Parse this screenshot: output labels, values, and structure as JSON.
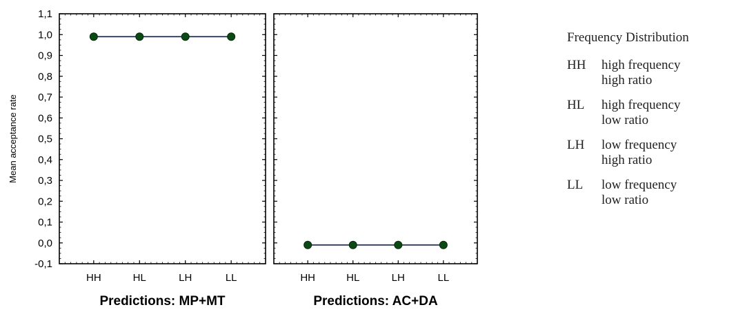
{
  "chart_data": {
    "type": "line",
    "ylabel": "Mean acceptance rate",
    "ylim": [
      -0.1,
      1.1
    ],
    "y_ticks": [
      "1,1",
      "1,0",
      "0,9",
      "0,8",
      "0,7",
      "0,6",
      "0,5",
      "0,4",
      "0,3",
      "0,2",
      "0,1",
      "0,0",
      "-0,1"
    ],
    "y_tick_values": [
      1.1,
      1.0,
      0.9,
      0.8,
      0.7,
      0.6,
      0.5,
      0.4,
      0.3,
      0.2,
      0.1,
      0.0,
      -0.1
    ],
    "categories": [
      "HH",
      "HL",
      "LH",
      "LL"
    ],
    "line_color": "#1f2a5a",
    "marker_color": "#0b4a14",
    "panels": [
      {
        "title": "Predictions: MP+MT",
        "values": [
          0.99,
          0.99,
          0.99,
          0.99
        ]
      },
      {
        "title": "Predictions: AC+DA",
        "values": [
          -0.01,
          -0.01,
          -0.01,
          -0.01
        ]
      }
    ]
  },
  "legend": {
    "title": "Frequency Distribution",
    "entries": [
      {
        "code": "HH",
        "line1": "high frequency",
        "line2": "high ratio"
      },
      {
        "code": "HL",
        "line1": "high frequency",
        "line2": "low ratio"
      },
      {
        "code": "LH",
        "line1": "low frequency",
        "line2": "high ratio"
      },
      {
        "code": "LL",
        "line1": "low frequency",
        "line2": "low ratio"
      }
    ]
  }
}
